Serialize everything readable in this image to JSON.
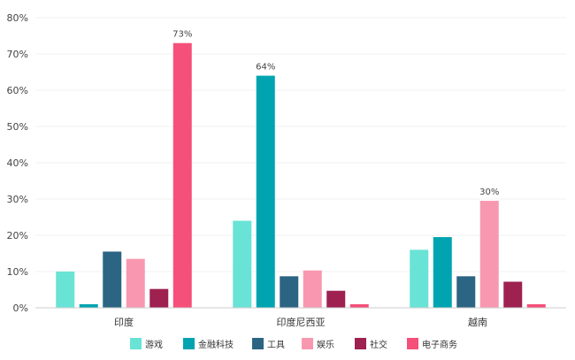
{
  "chart_data": {
    "type": "bar",
    "categories": [
      "印度",
      "印度尼西亚",
      "越南"
    ],
    "series": [
      {
        "name": "游戏",
        "color": "#69e3d6",
        "values": [
          10,
          24,
          16
        ]
      },
      {
        "name": "金融科技",
        "color": "#00a3b0",
        "values": [
          1,
          64,
          19.5
        ]
      },
      {
        "name": "工具",
        "color": "#2c6583",
        "values": [
          15.5,
          8.7,
          8.7
        ]
      },
      {
        "name": "娱乐",
        "color": "#f898b0",
        "values": [
          13.5,
          10.3,
          29.5
        ]
      },
      {
        "name": "社交",
        "color": "#9e2150",
        "values": [
          5.2,
          4.7,
          7.2
        ]
      },
      {
        "name": "电子商务",
        "color": "#f5507a",
        "values": [
          73,
          1,
          1
        ]
      }
    ],
    "data_labels": [
      {
        "series": "电子商务",
        "category": "印度",
        "text": "73%"
      },
      {
        "series": "金融科技",
        "category": "印度尼西亚",
        "text": "64%"
      },
      {
        "series": "娱乐",
        "category": "越南",
        "text": "30%"
      }
    ],
    "y_ticks": [
      "0%",
      "10%",
      "20%",
      "30%",
      "40%",
      "50%",
      "60%",
      "70%",
      "80%"
    ],
    "ylim": [
      0,
      80
    ],
    "grid": true,
    "legend_position": "bottom"
  }
}
